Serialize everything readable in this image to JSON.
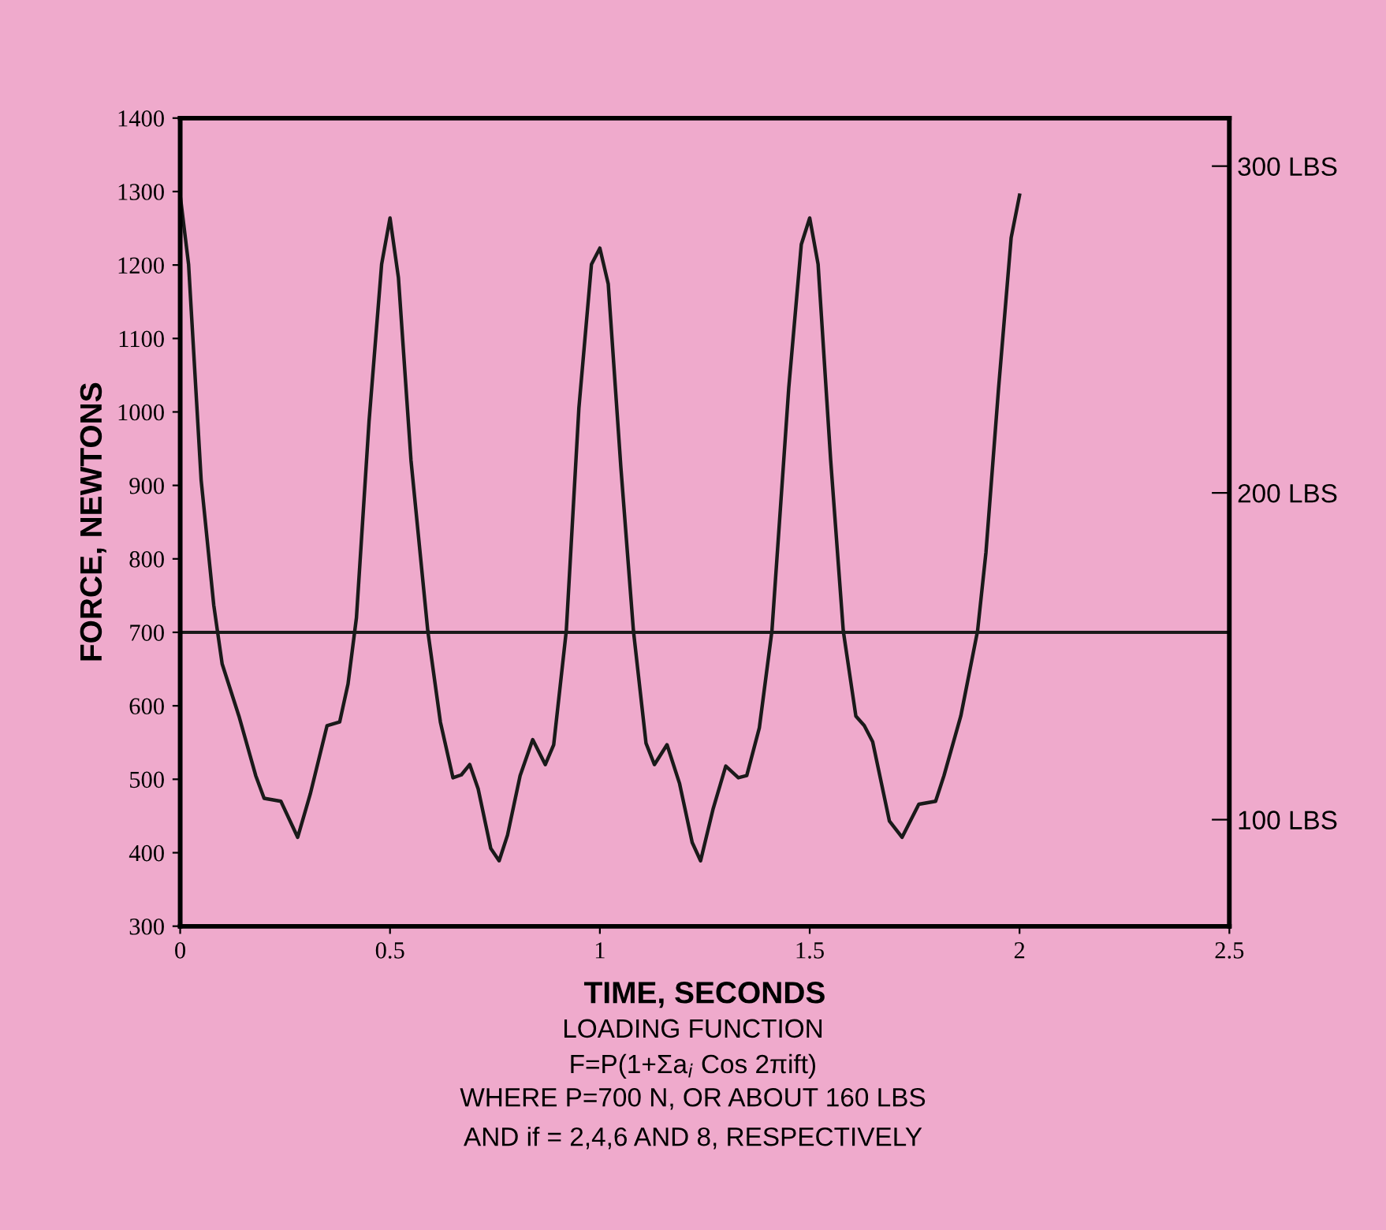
{
  "chart_data": {
    "type": "line",
    "xlabel": "TIME, SECONDS",
    "ylabel": "FORCE, NEWTONS",
    "x": [
      0,
      0.02,
      0.05,
      0.08,
      0.1,
      0.14,
      0.18,
      0.2,
      0.24,
      0.28,
      0.31,
      0.35,
      0.38,
      0.4,
      0.42,
      0.45,
      0.48,
      0.5,
      0.52,
      0.55,
      0.59,
      0.62,
      0.65,
      0.67,
      0.69,
      0.71,
      0.74,
      0.76,
      0.78,
      0.81,
      0.84,
      0.87,
      0.89,
      0.92,
      0.95,
      0.98,
      1.0,
      1.02,
      1.05,
      1.08,
      1.11,
      1.13,
      1.16,
      1.19,
      1.22,
      1.24,
      1.27,
      1.3,
      1.33,
      1.35,
      1.38,
      1.41,
      1.45,
      1.48,
      1.5,
      1.52,
      1.55,
      1.58,
      1.61,
      1.63,
      1.65,
      1.69,
      1.72,
      1.76,
      1.8,
      1.82,
      1.86,
      1.9,
      1.92,
      1.95,
      1.98,
      2.0
    ],
    "series": [
      {
        "color": "#1a1a1a",
        "values": [
          1295,
          1201,
          907,
          737,
          657,
          586,
          505,
          474,
          470,
          421,
          480,
          573,
          578,
          630,
          720,
          987,
          1201,
          1264,
          1183,
          934,
          702,
          578,
          502,
          506,
          520,
          487,
          406,
          389,
          424,
          505,
          554,
          520,
          547,
          702,
          1005,
          1201,
          1223,
          1174,
          925,
          702,
          549,
          520,
          547,
          494,
          414,
          389,
          460,
          518,
          502,
          505,
          570,
          702,
          1032,
          1228,
          1264,
          1201,
          934,
          702,
          586,
          573,
          551,
          443,
          421,
          466,
          470,
          505,
          586,
          702,
          809,
          1032,
          1237,
          1295
        ]
      }
    ],
    "xlim": [
      0,
      2.5
    ],
    "xticks": [
      0,
      {
        "value": 0.5,
        "label": "0.5"
      },
      1,
      1.5,
      2,
      2.5
    ],
    "ylim": [
      300,
      1400
    ],
    "yticks": [
      300,
      400,
      500,
      600,
      700,
      800,
      900,
      1000,
      1100,
      1200,
      1300,
      1400
    ],
    "y2lim": [
      67.4,
      314.7
    ],
    "y2ticks": [
      {
        "value": 100,
        "label": "100 LBS"
      },
      {
        "value": 200,
        "label": "200 LBS"
      },
      {
        "value": 300,
        "label": "300 LBS"
      }
    ],
    "ref_lines": [
      {
        "axis": "y",
        "value": 700,
        "color": "#1a1a1a"
      }
    ],
    "annotations": [
      "LOADING FUNCTION",
      "F=P(1+Σa$_{i}$ Cos 2πift)",
      "WHERE P=700 N, OR ABOUT 160 LBS",
      "AND if = 2,4,6 AND 8, RESPECTIVELY"
    ],
    "grid": false,
    "legend": false,
    "marker": "none",
    "line_style": "solid"
  }
}
